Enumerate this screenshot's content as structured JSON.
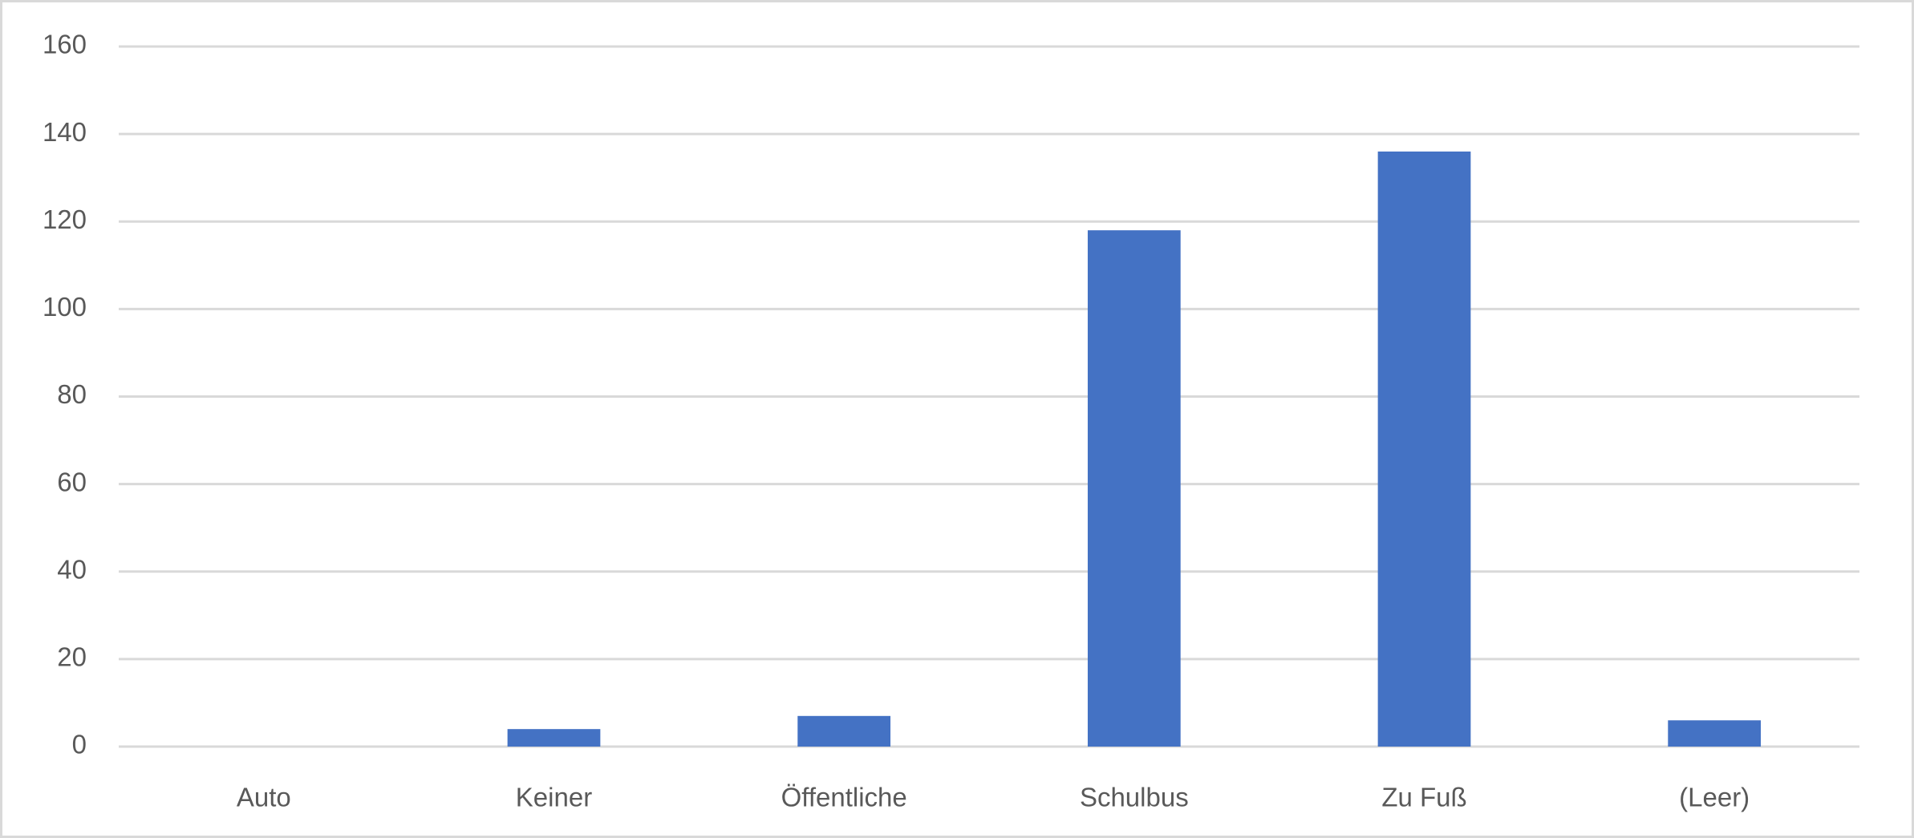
{
  "chart_data": {
    "type": "bar",
    "categories": [
      "Auto",
      "Keiner",
      "Öffentliche",
      "Schulbus",
      "Zu Fuß",
      "(Leer)"
    ],
    "values": [
      0,
      4,
      7,
      118,
      136,
      6
    ],
    "color": "#4472c4",
    "ylim": [
      0,
      160
    ],
    "yticks": [
      0,
      20,
      40,
      60,
      80,
      100,
      120,
      140,
      160
    ],
    "grid": true
  }
}
